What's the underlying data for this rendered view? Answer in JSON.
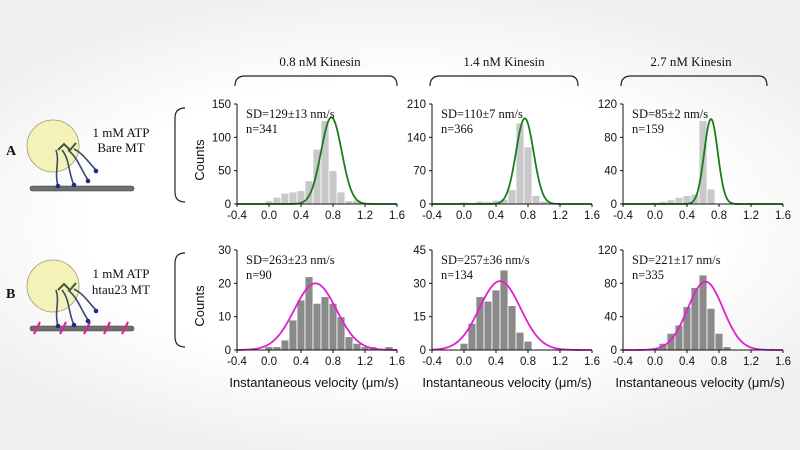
{
  "conditions": [
    "0.8 nM Kinesin",
    "1.4 nM Kinesin",
    "2.7 nM Kinesin"
  ],
  "rows": [
    {
      "letter": "A",
      "line1": "1 mM ATP",
      "line2": "Bare MT"
    },
    {
      "letter": "B",
      "line1": "1 mM ATP",
      "line2": "htau23 MT"
    }
  ],
  "ylabel": "Counts",
  "xlabel": "Instantaneous velocity (μm/s)",
  "colors": {
    "bare_bar": "#c9c9c9",
    "bare_fit": "#1a7d1a",
    "tau_bar": "#8a8a8a",
    "tau_fit": "#e020d0",
    "tau_mark": "#e0209a",
    "bead": "#f5f2b8"
  },
  "chart_data": [
    {
      "type": "bar",
      "row": 0,
      "col": 0,
      "sd": "SD=129±13 nm/s",
      "n": "n=341",
      "x": [
        -0.1,
        0.0,
        0.1,
        0.2,
        0.3,
        0.4,
        0.5,
        0.6,
        0.7,
        0.8,
        0.9,
        1.0,
        1.1,
        1.2,
        1.3
      ],
      "values": [
        0,
        5,
        10,
        16,
        18,
        20,
        35,
        82,
        125,
        50,
        18,
        5,
        6,
        2,
        0
      ],
      "fit": {
        "mu": 0.78,
        "sigma": 0.129,
        "peak": 130
      },
      "xlim": [
        -0.4,
        1.6
      ],
      "ylim": [
        0,
        150
      ],
      "xticks": [
        "-0.4",
        "0.0",
        "0.4",
        "0.8",
        "1.2",
        "1.6"
      ],
      "yticks": [
        "0",
        "50",
        "100",
        "150"
      ],
      "ytick_values": [
        0,
        50,
        100,
        150
      ]
    },
    {
      "type": "bar",
      "row": 0,
      "col": 1,
      "sd": "SD=110±7 nm/s",
      "n": "n=366",
      "x": [
        -0.1,
        0.0,
        0.1,
        0.2,
        0.3,
        0.4,
        0.5,
        0.6,
        0.7,
        0.8,
        0.9,
        1.0,
        1.1,
        1.2,
        1.3
      ],
      "values": [
        0,
        4,
        3,
        6,
        5,
        8,
        10,
        30,
        170,
        120,
        18,
        6,
        3,
        1,
        0
      ],
      "fit": {
        "mu": 0.76,
        "sigma": 0.11,
        "peak": 180
      },
      "xlim": [
        -0.4,
        1.6
      ],
      "ylim": [
        0,
        210
      ],
      "xticks": [
        "-0.4",
        "0.0",
        "0.4",
        "0.8",
        "1.2",
        "1.6"
      ],
      "yticks": [
        "0",
        "70",
        "140",
        "210"
      ],
      "ytick_values": [
        0,
        70,
        140,
        210
      ]
    },
    {
      "type": "bar",
      "row": 0,
      "col": 2,
      "sd": "SD=85±2 nm/s",
      "n": "n=159",
      "x": [
        -0.1,
        0.0,
        0.1,
        0.2,
        0.3,
        0.4,
        0.5,
        0.6,
        0.7,
        0.8,
        0.9,
        1.0,
        1.1,
        1.2,
        1.3
      ],
      "values": [
        0,
        2,
        3,
        5,
        8,
        10,
        12,
        100,
        18,
        0,
        0,
        0,
        0,
        0,
        0
      ],
      "fit": {
        "mu": 0.7,
        "sigma": 0.085,
        "peak": 102
      },
      "xlim": [
        -0.4,
        1.6
      ],
      "ylim": [
        0,
        120
      ],
      "xticks": [
        "-0.4",
        "0.0",
        "0.4",
        "0.8",
        "1.2",
        "1.6"
      ],
      "yticks": [
        "0",
        "40",
        "80",
        "120"
      ],
      "ytick_values": [
        0,
        40,
        80,
        120
      ]
    },
    {
      "type": "bar",
      "row": 1,
      "col": 0,
      "sd": "SD=263±23 nm/s",
      "n": "n=90",
      "x": [
        -0.1,
        0.0,
        0.1,
        0.2,
        0.3,
        0.4,
        0.5,
        0.6,
        0.7,
        0.8,
        0.9,
        1.0,
        1.1,
        1.2,
        1.3,
        1.4,
        1.5
      ],
      "values": [
        0,
        1,
        1,
        3,
        9,
        15,
        22,
        14,
        16,
        14,
        10,
        4,
        2,
        1,
        1,
        0,
        1
      ],
      "fit": {
        "mu": 0.58,
        "sigma": 0.263,
        "peak": 20
      },
      "xlim": [
        -0.4,
        1.6
      ],
      "ylim": [
        0,
        30
      ],
      "xticks": [
        "-0.4",
        "0.0",
        "0.4",
        "0.8",
        "1.2",
        "1.6"
      ],
      "yticks": [
        "0",
        "10",
        "20",
        "30"
      ],
      "ytick_values": [
        0,
        10,
        20,
        30
      ]
    },
    {
      "type": "bar",
      "row": 1,
      "col": 1,
      "sd": "SD=257±36 nm/s",
      "n": "n=134",
      "x": [
        -0.1,
        0.0,
        0.1,
        0.2,
        0.3,
        0.4,
        0.5,
        0.6,
        0.7,
        0.8,
        0.9,
        1.0,
        1.1,
        1.2,
        1.3
      ],
      "values": [
        0,
        3,
        12,
        24,
        22,
        27,
        36,
        20,
        8,
        4,
        0,
        0,
        0,
        0,
        0
      ],
      "fit": {
        "mu": 0.45,
        "sigma": 0.257,
        "peak": 31
      },
      "xlim": [
        -0.4,
        1.6
      ],
      "ylim": [
        0,
        45
      ],
      "xticks": [
        "-0.4",
        "0.0",
        "0.4",
        "0.8",
        "1.2",
        "1.6"
      ],
      "yticks": [
        "0",
        "15",
        "30",
        "45"
      ],
      "ytick_values": [
        0,
        15,
        30,
        45
      ]
    },
    {
      "type": "bar",
      "row": 1,
      "col": 2,
      "sd": "SD=221±17 nm/s",
      "n": "n=335",
      "x": [
        -0.1,
        0.0,
        0.1,
        0.2,
        0.3,
        0.4,
        0.5,
        0.6,
        0.7,
        0.8,
        0.9,
        1.0,
        1.1,
        1.2,
        1.3,
        1.4
      ],
      "values": [
        0,
        2,
        8,
        20,
        30,
        52,
        75,
        90,
        50,
        20,
        4,
        1,
        1,
        0,
        0,
        0
      ],
      "fit": {
        "mu": 0.63,
        "sigma": 0.221,
        "peak": 82
      },
      "xlim": [
        -0.4,
        1.6
      ],
      "ylim": [
        0,
        120
      ],
      "xticks": [
        "-0.4",
        "0.0",
        "0.4",
        "0.8",
        "1.2",
        "1.6"
      ],
      "yticks": [
        "0",
        "40",
        "80",
        "120"
      ],
      "ytick_values": [
        0,
        40,
        80,
        120
      ]
    }
  ]
}
